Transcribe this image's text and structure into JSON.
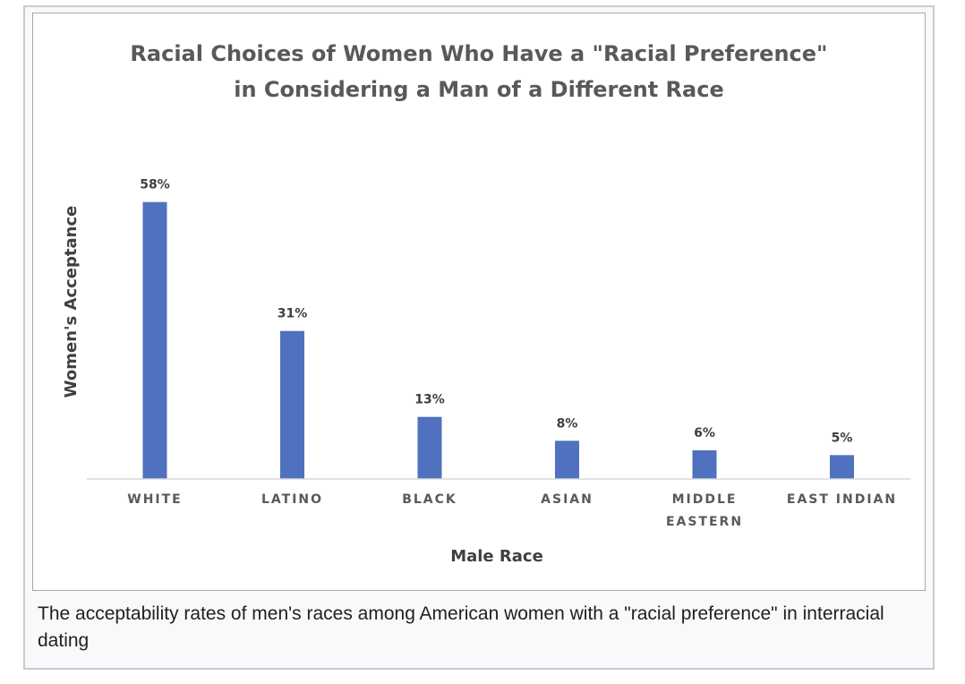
{
  "chart_data": {
    "type": "bar",
    "title_lines": [
      "Racial Choices of Women Who Have a \"Racial Preference\"",
      "in Considering a Man of a Different Race"
    ],
    "xlabel": "Male Race",
    "ylabel": "Women's Acceptance",
    "categories": [
      [
        "WHITE"
      ],
      [
        "LATINO"
      ],
      [
        "BLACK"
      ],
      [
        "ASIAN"
      ],
      [
        "MIDDLE",
        "EASTERN"
      ],
      [
        "EAST INDIAN"
      ]
    ],
    "values": [
      58,
      31,
      13,
      8,
      6,
      5
    ],
    "data_labels": [
      "58%",
      "31%",
      "13%",
      "8%",
      "6%",
      "5%"
    ],
    "ylim": [
      0,
      60
    ],
    "grid": false,
    "bar_color": "#4f71be"
  },
  "caption": "The acceptability rates of men's races among American women with a \"racial preference\" in interracial dating"
}
